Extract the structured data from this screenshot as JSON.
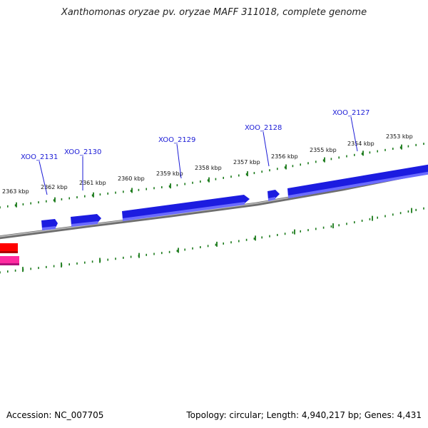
{
  "title": "Xanthomonas oryzae pv. oryzae MAFF 311018, complete genome",
  "footer": {
    "accession": "Accession: NC_007705",
    "summary": "Topology: circular; Length: 4,940,217 bp; Genes: 4,431"
  },
  "scale": {
    "labels": [
      "2363 kbp",
      "2362 kbp",
      "2361 kbp",
      "2360 kbp",
      "2359 kbp",
      "2358 kbp",
      "2357 kbp",
      "2356 kbp",
      "2355 kbp",
      "2354 kbp",
      "2353 kbp"
    ]
  },
  "genes": [
    {
      "name": "XOO_2131"
    },
    {
      "name": "XOO_2130"
    },
    {
      "name": "XOO_2129"
    },
    {
      "name": "XOO_2128"
    },
    {
      "name": "XOO_2127"
    }
  ],
  "colors": {
    "forward_gene": "#0000dd",
    "reverse_gene": "#ff0000",
    "reverse_gene_2": "#ff1493",
    "backbone": "#8a8a8a",
    "ticks": "#1a7a1a",
    "label": "#1a1ad6"
  }
}
